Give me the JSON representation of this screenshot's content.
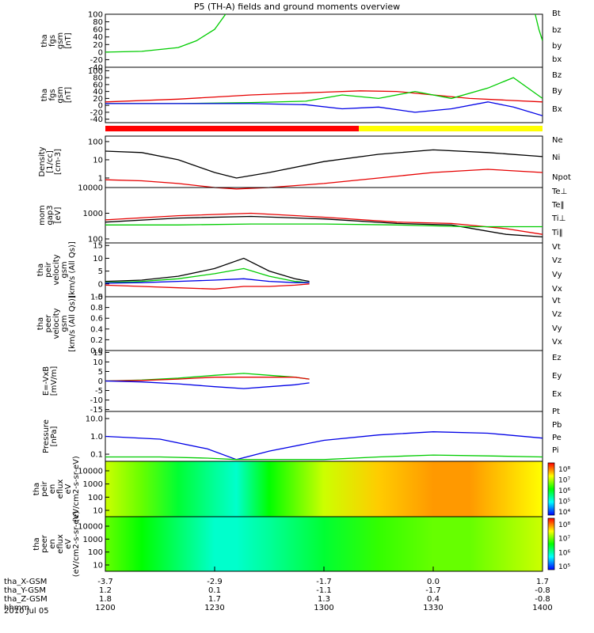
{
  "chart_data": {
    "type": "line",
    "title": "P5 (TH-A) fields and ground moments overview",
    "x_ticks": [
      "1200",
      "1230",
      "1300",
      "1330",
      "1400"
    ],
    "x_range_min": [
      0,
      120
    ],
    "ephemeris": {
      "rows": [
        {
          "label": "tha_X-GSM",
          "values": [
            "-3.7",
            "-2.9",
            "-1.7",
            "0.0",
            "1.7"
          ]
        },
        {
          "label": "tha_Y-GSM",
          "values": [
            "1.2",
            "0.1",
            "-1.1",
            "-1.7",
            "-0.8"
          ]
        },
        {
          "label": "tha_Z-GSM",
          "values": [
            "1.8",
            "1.7",
            "1.3",
            "0.4",
            "-0.8"
          ]
        },
        {
          "label": "hhmm",
          "values": [
            "1200",
            "1230",
            "1300",
            "1330",
            "1400"
          ]
        }
      ],
      "date": "2010 Jul 05"
    },
    "panels": [
      {
        "ylabel": [
          "tha",
          "fgs",
          "gsm",
          "[nT]"
        ],
        "ylim": [
          -40,
          100
        ],
        "yticks": [
          "100",
          "80",
          "60",
          "40",
          "20",
          "0",
          "-20",
          "-40"
        ],
        "tick_values": [
          100,
          80,
          60,
          40,
          20,
          0,
          -20,
          -40
        ],
        "legend": [
          "Bt",
          "bz",
          "by",
          "bx"
        ],
        "legend_colors": [
          "#000000",
          "#e60000",
          "#00cc00",
          "#0000e6"
        ],
        "series": [
          {
            "name": "by",
            "x": [
              0,
              10,
              20,
              25,
              30,
              33
            ],
            "y": [
              0,
              2,
              12,
              30,
              60,
              100
            ]
          },
          {
            "name": "by",
            "x": [
              118,
              119,
              120
            ],
            "y": [
              100,
              60,
              30
            ]
          }
        ]
      },
      {
        "ylabel": [
          "tha",
          "fgs",
          "gsm",
          "[nT]"
        ],
        "ylim": [
          -50,
          110
        ],
        "yticks": [
          "100",
          "80",
          "60",
          "40",
          "20",
          "0",
          "-20",
          "-40"
        ],
        "tick_values": [
          100,
          80,
          60,
          40,
          20,
          0,
          -20,
          -40
        ],
        "legend": [
          "Bz",
          "By",
          "Bx"
        ],
        "legend_colors": [
          "#e60000",
          "#00cc00",
          "#0000e6"
        ],
        "series": [
          {
            "name": "Bz",
            "x": [
              0,
              20,
              40,
              60,
              70,
              80,
              90,
              100,
              110,
              120
            ],
            "y": [
              10,
              18,
              30,
              38,
              42,
              40,
              30,
              20,
              15,
              10
            ]
          },
          {
            "name": "By",
            "x": [
              0,
              20,
              40,
              55,
              65,
              75,
              85,
              95,
              105,
              112,
              120
            ],
            "y": [
              5,
              5,
              8,
              12,
              30,
              20,
              40,
              20,
              50,
              80,
              20
            ]
          },
          {
            "name": "Bx",
            "x": [
              0,
              20,
              40,
              55,
              65,
              75,
              85,
              95,
              105,
              112,
              120
            ],
            "y": [
              5,
              5,
              5,
              2,
              -10,
              -5,
              -20,
              -10,
              10,
              -5,
              -30
            ]
          }
        ]
      },
      {
        "ylabel": [
          "Density",
          "[1/cc]",
          "[cm-3]"
        ],
        "ylim": [
          0.3,
          200
        ],
        "log": true,
        "yticks": [
          "100",
          "10",
          "1"
        ],
        "tick_values": [
          100,
          10,
          1
        ],
        "legend": [
          "Ne",
          "Ni",
          "Npot"
        ],
        "legend_colors": [
          "#e60000",
          "#000000",
          "#0000e6"
        ],
        "series": [
          {
            "name": "Ni",
            "x": [
              0,
              10,
              20,
              30,
              36,
              45,
              60,
              75,
              90,
              105,
              120
            ],
            "y": [
              30,
              25,
              10,
              2,
              1,
              2,
              8,
              20,
              35,
              25,
              15
            ]
          },
          {
            "name": "Ne",
            "x": [
              0,
              10,
              20,
              30,
              36,
              45,
              60,
              75,
              90,
              105,
              120
            ],
            "y": [
              0.8,
              0.7,
              0.5,
              0.3,
              0.25,
              0.3,
              0.5,
              1,
              2,
              3,
              2
            ]
          }
        ]
      },
      {
        "ylabel": [
          "mom",
          "gap3",
          "[eV]"
        ],
        "ylim": [
          70,
          10000
        ],
        "log": true,
        "yticks": [
          "10000",
          "1000",
          "100"
        ],
        "tick_values": [
          10000,
          1000,
          100
        ],
        "legend": [
          "Te⊥",
          "Te‖",
          "Ti⊥",
          "Ti‖"
        ],
        "legend_colors": [
          "#e60000",
          "#000000",
          "#00cc00",
          "#00cc00"
        ],
        "series": [
          {
            "name": "Te⊥",
            "x": [
              0,
              20,
              40,
              60,
              80,
              95,
              110,
              120
            ],
            "y": [
              550,
              800,
              1000,
              700,
              450,
              400,
              250,
              150
            ]
          },
          {
            "name": "Te‖",
            "x": [
              0,
              20,
              40,
              60,
              80,
              95,
              110,
              120
            ],
            "y": [
              450,
              650,
              750,
              600,
              400,
              350,
              150,
              120
            ]
          },
          {
            "name": "Ti⊥",
            "x": [
              0,
              20,
              40,
              60,
              80,
              100,
              120
            ],
            "y": [
              350,
              350,
              380,
              380,
              350,
              300,
              300
            ]
          }
        ]
      },
      {
        "ylabel": [
          "tha",
          "peir",
          "velocity",
          "gsm",
          "[km/s (All Qs)]"
        ],
        "ylim": [
          -5,
          16
        ],
        "yticks": [
          "15",
          "10",
          "5",
          "0",
          "-5"
        ],
        "tick_values": [
          15,
          10,
          5,
          0,
          -5
        ],
        "legend": [
          "Vt",
          "Vz",
          "Vy",
          "Vx"
        ],
        "legend_colors": [
          "#000000",
          "#e60000",
          "#00cc00",
          "#0000e6"
        ],
        "series": [
          {
            "name": "Vt",
            "x": [
              0,
              10,
              20,
              30,
              38,
              45,
              52,
              56
            ],
            "y": [
              1,
              1.5,
              3,
              6,
              10,
              5,
              2,
              1
            ]
          },
          {
            "name": "Vy",
            "x": [
              0,
              10,
              20,
              30,
              38,
              45,
              52,
              56
            ],
            "y": [
              0.5,
              1,
              2,
              4,
              6,
              3,
              1,
              0.5
            ]
          },
          {
            "name": "Vz",
            "x": [
              0,
              10,
              20,
              30,
              38,
              45,
              52,
              56
            ],
            "y": [
              -0.5,
              -1,
              -1.5,
              -2,
              -1,
              -1,
              -0.5,
              0
            ]
          },
          {
            "name": "Vx",
            "x": [
              0,
              10,
              20,
              30,
              38,
              45,
              52,
              56
            ],
            "y": [
              0.3,
              0.5,
              1,
              1.5,
              2,
              1,
              0.5,
              0.5
            ]
          }
        ]
      },
      {
        "ylabel": [
          "tha",
          "peer",
          "velocity",
          "gsm",
          "[km/s (All Qs)]"
        ],
        "ylim": [
          0,
          1
        ],
        "yticks": [
          "1.0",
          "0.8",
          "0.6",
          "0.4",
          "0.2",
          "0.0"
        ],
        "tick_values": [
          1.0,
          0.8,
          0.6,
          0.4,
          0.2,
          0.0
        ],
        "legend": [
          "Vt",
          "Vz",
          "Vy",
          "Vx"
        ],
        "legend_colors": [
          "#000000",
          "#e60000",
          "#00cc00",
          "#0000e6"
        ],
        "series": []
      },
      {
        "ylabel": [
          "E=-VxB",
          "[mV/m]"
        ],
        "ylim": [
          -16,
          16
        ],
        "yticks": [
          "15",
          "10",
          "5",
          "0",
          "-5",
          "-10",
          "-15"
        ],
        "tick_values": [
          15,
          10,
          5,
          0,
          -5,
          -10,
          -15
        ],
        "legend": [
          "Ez",
          "Ey",
          "Ex"
        ],
        "legend_colors": [
          "#e60000",
          "#00cc00",
          "#0000e6"
        ],
        "series": [
          {
            "name": "Ey",
            "x": [
              0,
              10,
              20,
              30,
              38,
              45,
              52,
              56
            ],
            "y": [
              0,
              0.5,
              1.5,
              3,
              4,
              3,
              2,
              1
            ]
          },
          {
            "name": "Ez",
            "x": [
              0,
              10,
              20,
              30,
              38,
              45,
              52,
              56
            ],
            "y": [
              0,
              0.3,
              1,
              2,
              2,
              2,
              2,
              1
            ]
          },
          {
            "name": "Ex",
            "x": [
              0,
              10,
              20,
              30,
              38,
              45,
              52,
              56
            ],
            "y": [
              0,
              -0.5,
              -1.5,
              -3,
              -4,
              -3,
              -2,
              -1
            ]
          }
        ]
      },
      {
        "ylabel": [
          "Pressure",
          "[nPa]"
        ],
        "ylim": [
          0.04,
          25
        ],
        "log": true,
        "yticks": [
          "10.0",
          "1.0",
          "0.1"
        ],
        "tick_values": [
          10,
          1,
          0.1
        ],
        "legend": [
          "Pt",
          "Pb",
          "Pe",
          "Pi"
        ],
        "legend_colors": [
          "#000000",
          "#e60000",
          "#00cc00",
          "#0000e6"
        ],
        "series": [
          {
            "name": "Pi",
            "x": [
              0,
              15,
              28,
              36,
              45,
              60,
              75,
              90,
              105,
              120
            ],
            "y": [
              1.0,
              0.7,
              0.2,
              0.05,
              0.15,
              0.6,
              1.2,
              1.8,
              1.5,
              0.8
            ]
          },
          {
            "name": "Pe",
            "x": [
              0,
              15,
              28,
              36,
              45,
              60,
              75,
              90,
              105,
              120
            ],
            "y": [
              0.07,
              0.07,
              0.06,
              0.05,
              0.05,
              0.05,
              0.07,
              0.09,
              0.08,
              0.07
            ]
          }
        ]
      },
      {
        "kind": "spectrogram",
        "ylabel": [
          "tha",
          "peir",
          "en",
          "eflux",
          "eV",
          "(eV/cm2-s-sr-eV)"
        ],
        "yticks": [
          "10000",
          "1000",
          "100",
          "10"
        ],
        "cbar_ticks": [
          "10⁸",
          "10⁷",
          "10⁶",
          "10⁵",
          "10⁴"
        ],
        "profile_x": [
          0,
          10,
          20,
          30,
          36,
          45,
          60,
          75,
          90,
          100,
          110,
          120
        ],
        "profile_level": [
          0.7,
          0.6,
          0.45,
          0.35,
          0.3,
          0.5,
          0.7,
          0.8,
          0.85,
          0.85,
          0.8,
          0.75
        ]
      },
      {
        "kind": "spectrogram",
        "ylabel": [
          "tha",
          "peer",
          "en",
          "eflux",
          "eV",
          "(eV/cm2-s-sr-eV)"
        ],
        "yticks": [
          "10000",
          "1000",
          "100",
          "10"
        ],
        "cbar_ticks": [
          "10⁸",
          "10⁷",
          "10⁶",
          "10⁵"
        ],
        "profile_x": [
          0,
          10,
          20,
          30,
          36,
          45,
          60,
          75,
          90,
          100,
          110,
          120
        ],
        "profile_level": [
          0.6,
          0.5,
          0.4,
          0.3,
          0.3,
          0.35,
          0.45,
          0.55,
          0.6,
          0.6,
          0.65,
          0.7
        ]
      }
    ]
  },
  "orbit_bar_colors": [
    "#ff0000",
    "#ffff00"
  ],
  "orbit_bar_split": 0.58
}
